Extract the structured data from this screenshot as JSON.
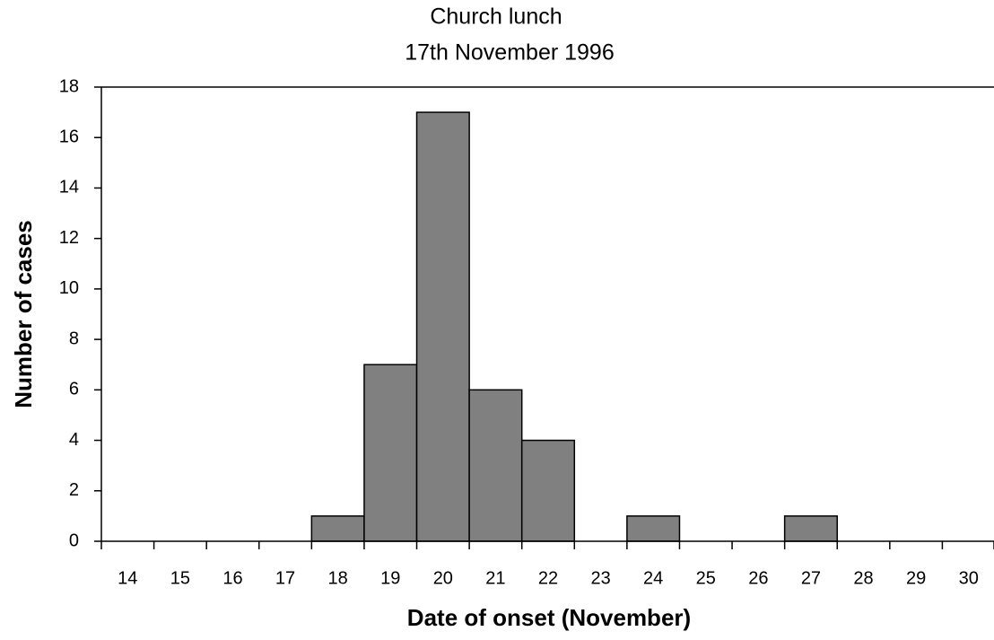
{
  "chart_data": {
    "type": "bar",
    "title": "Church lunch",
    "subtitle": "17th November 1996",
    "x_label": "Date of onset (November)",
    "y_label": "Number of cases",
    "categories": [
      "14",
      "15",
      "16",
      "17",
      "18",
      "19",
      "20",
      "21",
      "22",
      "23",
      "24",
      "25",
      "26",
      "27",
      "28",
      "29",
      "30"
    ],
    "values": [
      0,
      0,
      0,
      0,
      1,
      7,
      17,
      6,
      4,
      0,
      1,
      0,
      0,
      1,
      0,
      0,
      0
    ],
    "color": "#808080",
    "ylim": [
      0,
      18
    ],
    "yticks": [
      0,
      2,
      4,
      6,
      8,
      10,
      12,
      14,
      16,
      18
    ],
    "grid": false
  }
}
